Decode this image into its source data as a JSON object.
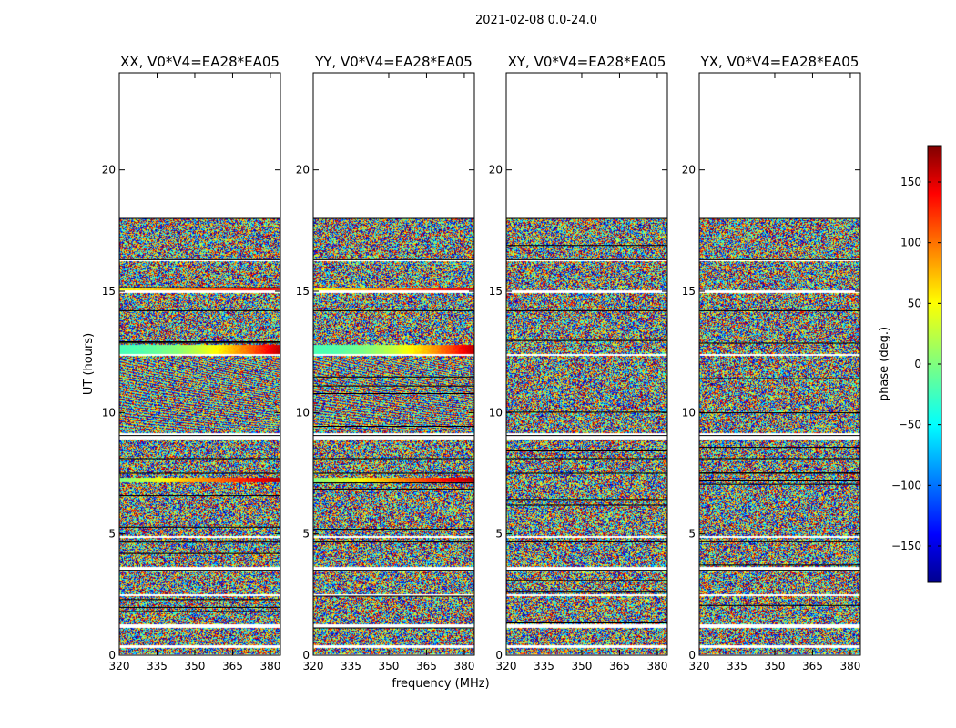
{
  "chart_data": {
    "type": "heatmap",
    "suptitle": "2021-02-08 0.0-24.0",
    "xlabel": "frequency (MHz)",
    "ylabel": "UT (hours)",
    "xlim": [
      320,
      384
    ],
    "ylim": [
      0,
      24
    ],
    "xticks": [
      320,
      335,
      350,
      365,
      380
    ],
    "yticks": [
      0,
      5,
      10,
      15,
      20
    ],
    "panels": [
      {
        "title": "XX, V0*V4=EA28*EA05"
      },
      {
        "title": "YY, V0*V4=EA28*EA05"
      },
      {
        "title": "XY, V0*V4=EA28*EA05"
      },
      {
        "title": "YX, V0*V4=EA28*EA05"
      }
    ],
    "data_time_range_hours": [
      0,
      18
    ],
    "colorbar": {
      "label": "phase (deg.)",
      "range": [
        -180,
        180
      ],
      "ticks": [
        -150,
        -100,
        -50,
        0,
        50,
        100,
        150
      ],
      "colormap": "jet"
    }
  }
}
